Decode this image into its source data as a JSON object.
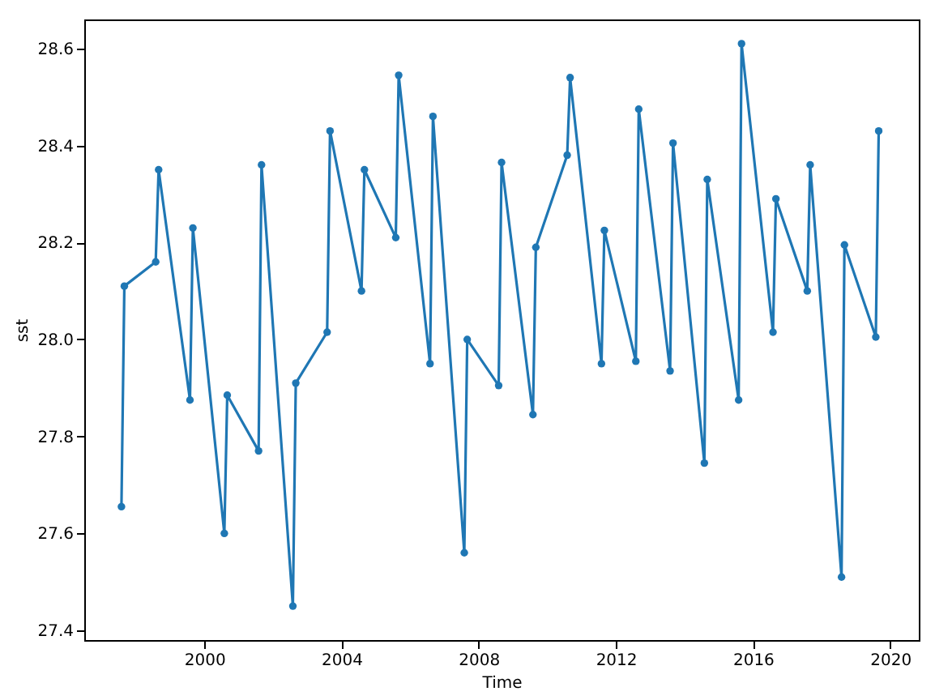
{
  "chart_data": {
    "type": "line",
    "xlabel": "Time",
    "ylabel": "sst",
    "x": [
      "1997-08",
      "1997-09",
      "1998-08",
      "1998-09",
      "1999-08",
      "1999-09",
      "2000-08",
      "2000-09",
      "2001-08",
      "2001-09",
      "2002-08",
      "2002-09",
      "2003-08",
      "2003-09",
      "2004-08",
      "2004-09",
      "2005-08",
      "2005-09",
      "2006-08",
      "2006-09",
      "2007-08",
      "2007-09",
      "2008-08",
      "2008-09",
      "2009-08",
      "2009-09",
      "2010-08",
      "2010-09",
      "2011-08",
      "2011-09",
      "2012-08",
      "2012-09",
      "2013-08",
      "2013-09",
      "2014-08",
      "2014-09",
      "2015-08",
      "2015-09",
      "2016-08",
      "2016-09",
      "2017-08",
      "2017-09",
      "2018-08",
      "2018-09",
      "2019-08",
      "2019-09"
    ],
    "series": [
      {
        "color": "#1f77b4",
        "values": [
          27.655,
          28.11,
          28.16,
          28.35,
          27.875,
          28.23,
          27.6,
          27.885,
          27.77,
          28.36,
          27.45,
          27.91,
          28.015,
          28.43,
          28.1,
          28.35,
          28.21,
          28.545,
          27.95,
          28.46,
          27.56,
          28.0,
          27.905,
          28.365,
          27.845,
          28.19,
          28.38,
          28.54,
          27.95,
          28.225,
          27.955,
          28.475,
          27.935,
          28.405,
          27.745,
          28.33,
          27.875,
          28.61,
          28.015,
          28.29,
          28.1,
          28.36,
          27.51,
          28.195,
          28.005,
          28.43
        ]
      }
    ],
    "xlim": [
      "1996-07",
      "2020-11"
    ],
    "xticks": [
      "2000",
      "2004",
      "2008",
      "2012",
      "2016",
      "2020"
    ],
    "ylim": [
      27.38,
      28.66
    ],
    "yticks": [
      27.4,
      27.6,
      27.8,
      {
        "value": 28.0,
        "label": "28.0"
      },
      28.2,
      28.4,
      28.6
    ],
    "grid": false,
    "marker": "circle",
    "line_style": "solid"
  }
}
